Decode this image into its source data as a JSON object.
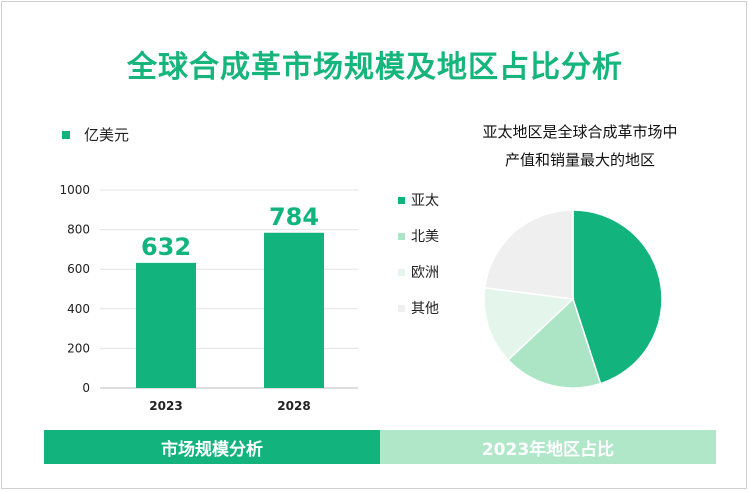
{
  "title": "全球合成革市场规模及地区占比分析",
  "colors": {
    "bar": "#12b37d",
    "footer_left": "#12b37d",
    "footer_right": "#b0e7c9"
  },
  "bar_chart": {
    "legend_label": "亿美元"
  },
  "pie_chart": {
    "title_line1": "亚太地区是全球合成革市场中",
    "title_line2": "产值和销量最大的地区"
  },
  "footer": {
    "left_label": "市场规模分析",
    "right_label": "2023年地区占比"
  },
  "chart_data": [
    {
      "type": "bar",
      "categories": [
        "2023",
        "2028"
      ],
      "values": [
        632,
        784
      ],
      "series": [
        {
          "name": "亿美元",
          "values": [
            632,
            784
          ]
        }
      ],
      "ylim": [
        0,
        1000
      ],
      "yticks": [
        0,
        200,
        400,
        600,
        800,
        1000
      ],
      "grid": true,
      "data_labels": true
    },
    {
      "type": "pie",
      "labels": [
        "亚太",
        "北美",
        "欧洲",
        "其他"
      ],
      "values": [
        45,
        18,
        14,
        23
      ],
      "colors": [
        "#12b37d",
        "#abe5c5",
        "#e4f6ec",
        "#efefef"
      ],
      "legend": "left"
    }
  ]
}
